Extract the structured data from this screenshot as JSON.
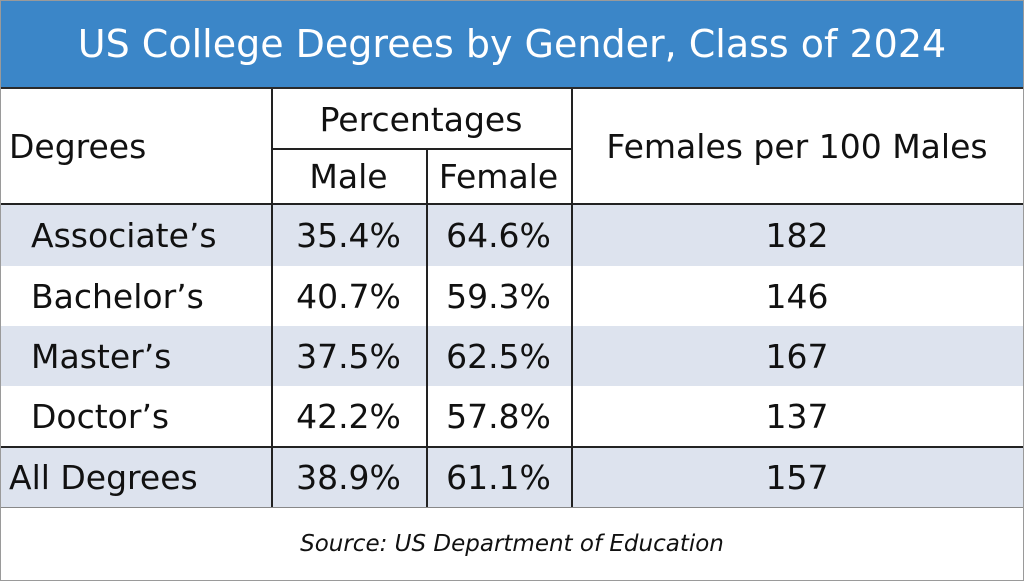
{
  "table": {
    "title": "US College Degrees by Gender, Class of 2024",
    "header": {
      "degrees": "Degrees",
      "percentages": "Percentages",
      "male": "Male",
      "female": "Female",
      "ratio": "Females per 100 Males"
    },
    "rows": [
      [
        "Associate’s",
        "35.4%",
        "64.6%",
        "182"
      ],
      [
        "Bachelor’s",
        "40.7%",
        "59.3%",
        "146"
      ],
      [
        "Master’s",
        "37.5%",
        "62.5%",
        "167"
      ],
      [
        "Doctor’s",
        "42.2%",
        "57.8%",
        "137"
      ],
      [
        "All Degrees",
        "38.9%",
        "61.1%",
        "157"
      ]
    ],
    "source": "Source: US Department of Education"
  }
}
